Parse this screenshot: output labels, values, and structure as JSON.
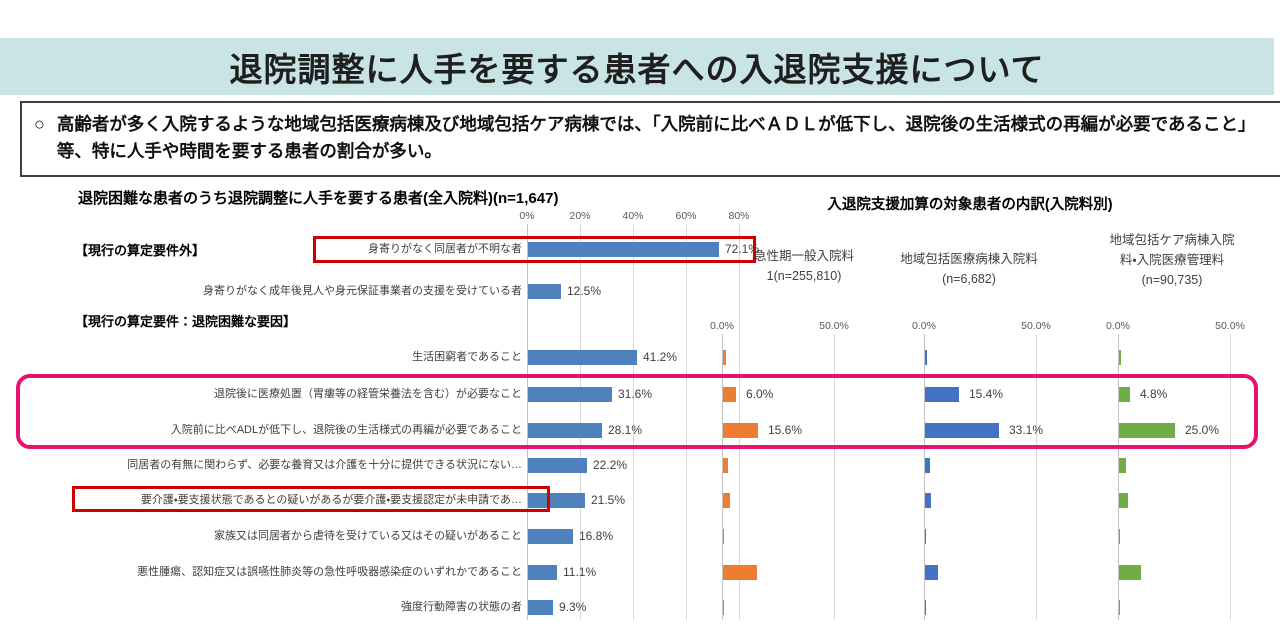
{
  "page": {
    "title": "退院調整に人手を要する患者への入退院支援について",
    "bullet_marker": "○",
    "bullet_text": "高齢者が多く入院するような地域包括医療病棟及び地域包括ケア病棟では、「入院前に比べＡＤＬが低下し、退院後の生活様式の再編が必要であること」等、特に人手や時間を要する患者の割合が多い。"
  },
  "colors": {
    "title_band_bg": "#c9e4e4",
    "left_bar_blue": "#4f81bd",
    "series_orange": "#ed7d31",
    "series_blue": "#4472c4",
    "series_green": "#70ad47",
    "red_highlight": "#cc0000",
    "pink_highlight": "#e7126d",
    "gridline": "#d9d9d9",
    "box_border": "#404040"
  },
  "chart_data": [
    {
      "type": "bar",
      "orientation": "horizontal",
      "title": "退院困難な患者のうち退院調整に人手を要する患者(全入院料)(n=1,647)",
      "xlim": [
        0,
        80
      ],
      "axis": {
        "ticks": [
          "0%",
          "20%",
          "40%",
          "60%",
          "80%"
        ]
      },
      "grid": true,
      "sections": [
        {
          "header": "【現行の算定要件外】",
          "rows": [
            {
              "label": "身寄りがなく同居者が不明な者",
              "value": 72.1,
              "text": "72.1%"
            },
            {
              "label": "身寄りがなく成年後見人や身元保証事業者の支援を受けている者",
              "value": 12.5,
              "text": "12.5%"
            }
          ]
        },
        {
          "header": "【現行の算定要件：退院困難な要因】",
          "rows": [
            {
              "label": "生活困窮者であること",
              "value": 41.2,
              "text": "41.2%"
            },
            {
              "label": "退院後に医療処置（胃瘻等の経管栄養法を含む）が必要なこと",
              "value": 31.6,
              "text": "31.6%"
            },
            {
              "label": "入院前に比べADLが低下し、退院後の生活様式の再編が必要であること",
              "value": 28.1,
              "text": "28.1%"
            },
            {
              "label": "同居者の有無に関わらず、必要な養育又は介護を十分に提供できる状況にない…",
              "value": 22.2,
              "text": "22.2%"
            },
            {
              "label": "要介護・要支援状態であるとの疑いがあるが要介護・要支援認定が未申請であ…",
              "value": 21.5,
              "text": "21.5%"
            },
            {
              "label": "家族又は同居者から虐待を受けている又はその疑いがあること",
              "value": 16.8,
              "text": "16.8%"
            },
            {
              "label": "悪性腫瘍、認知症又は誤嚥性肺炎等の急性呼吸器感染症のいずれかであること",
              "value": 11.1,
              "text": "11.1%"
            },
            {
              "label": "強度行動障害の状態の者",
              "value": 9.3,
              "text": "9.3%"
            }
          ]
        }
      ]
    },
    {
      "type": "bar",
      "orientation": "horizontal",
      "title": "入退院支援加算の対象患者の内訳(入院料別)",
      "xlim": [
        0,
        50
      ],
      "axis": {
        "ticks": [
          "0.0%",
          "50.0%"
        ]
      },
      "grid": true,
      "categories": [
        "生活困窮者であること",
        "退院後に医療処置（胃瘻等の経管栄養法を含む）が必要なこと",
        "入院前に比べADLが低下し、退院後の生活様式の再編が必要であること",
        "同居者の有無に関わらず、必要な養育又は介護を十分に提供できる状況にない…",
        "要介護・要支援状態であるとの疑いがあるが要介護・要支援認定が未申請であ…",
        "家族又は同居者から虐待を受けている又はその疑いがあること",
        "悪性腫瘍、認知症又は誤嚥性肺炎等の急性呼吸器感染症のいずれかであること",
        "強度行動障害の状態の者"
      ],
      "series": [
        {
          "name": "急性期一般入院料1(n=255,810)",
          "color": "#ed7d31",
          "values": [
            1.2,
            6.0,
            15.6,
            2.4,
            3.2,
            0.4,
            15.0,
            0.4
          ],
          "labels": [
            "",
            "6.0%",
            "15.6%",
            "",
            "",
            "",
            "",
            ""
          ]
        },
        {
          "name": "地域包括医療病棟入院料(n=6,682)",
          "color": "#4472c4",
          "values": [
            1.0,
            15.4,
            33.1,
            2.2,
            2.6,
            0.5,
            6.0,
            0.5
          ],
          "labels": [
            "",
            "15.4%",
            "33.1%",
            "",
            "",
            "",
            "",
            ""
          ]
        },
        {
          "name": "地域包括ケア病棟入院料・入院医療管理料(n=90,735)",
          "color": "#70ad47",
          "values": [
            1.0,
            4.8,
            25.0,
            3.0,
            4.0,
            0.3,
            10.0,
            0.3
          ],
          "labels": [
            "",
            "4.8%",
            "25.0%",
            "",
            "",
            "",
            "",
            ""
          ]
        }
      ]
    }
  ],
  "annotations": {
    "red_boxes": [
      {
        "around": "身寄りがなく同居者が不明な者（ラベルとバー）"
      },
      {
        "around": "要介護・要支援状態であるとの疑いがあるが要介護・要支援認定が未申請であ…（ラベル）"
      }
    ],
    "pink_rounded_box": {
      "around": "「退院後に医療処置が必要なこと」「入院前に比べADLが低下し…」の2行（全チャート横断）"
    }
  }
}
